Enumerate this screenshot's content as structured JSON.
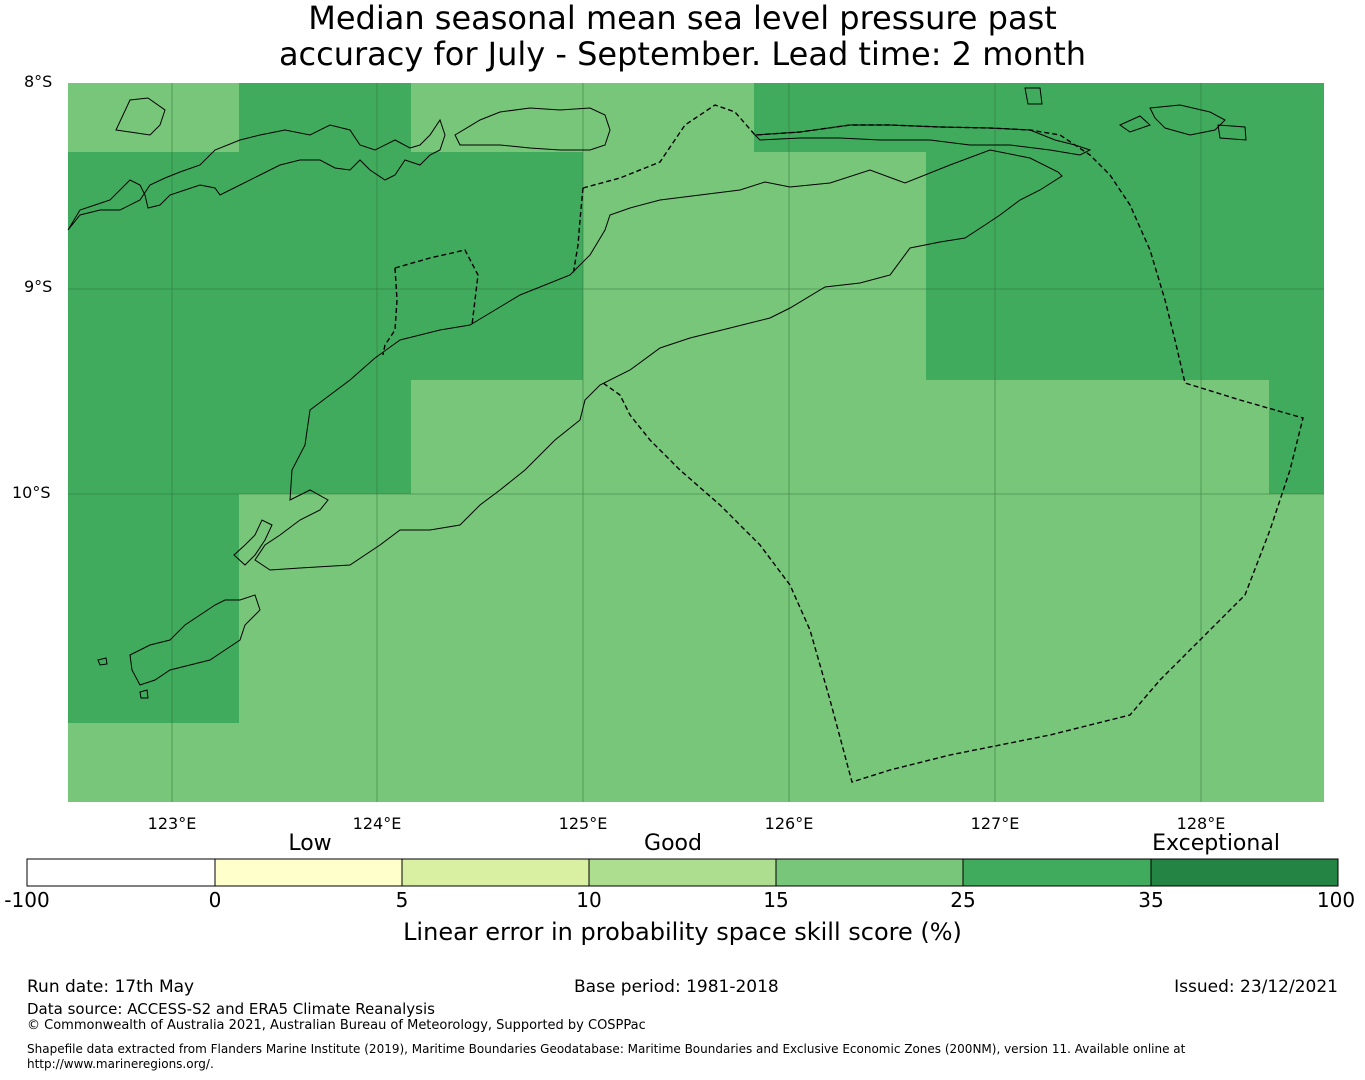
{
  "title": {
    "line1": "Median seasonal mean sea level pressure past",
    "line2": "accuracy for July - September. Lead time: 2 month"
  },
  "map": {
    "lat_labels": [
      "8°S",
      "9°S",
      "10°S"
    ],
    "lon_labels": [
      "123°E",
      "124°E",
      "125°E",
      "126°E",
      "127°E",
      "128°E"
    ],
    "colors": {
      "good": "#78c679",
      "very_good": "#41ab5d",
      "gridline": "#2a6b34",
      "coast": "#000000"
    },
    "icon": "skill-score-grid-map"
  },
  "colorbar": {
    "category_labels": [
      "Low",
      "Good",
      "Exceptional"
    ],
    "ticks": [
      "-100",
      "0",
      "5",
      "10",
      "15",
      "25",
      "35",
      "100"
    ],
    "colors": [
      "#ffffff",
      "#ffffcc",
      "#d9f0a3",
      "#addd8e",
      "#78c679",
      "#41ab5d",
      "#238443"
    ],
    "label": "Linear error in probability space skill score (%)"
  },
  "footer": {
    "run_date": "Run date: 17th May",
    "base_period": "Base period: 1981-2018",
    "issued": "Issued: 23/12/2021",
    "data_source": "Data source: ACCESS-S2 and ERA5 Climate Reanalysis",
    "copyright": "© Commonwealth of Australia 2021, Australian Bureau of Meteorology, Supported by COSPPac",
    "shapefile_line1": "Shapefile data extracted from Flanders Marine Institute (2019), Maritime Boundaries Geodatabase: Maritime Boundaries and Exclusive Economic Zones (200NM), version 11. Available online at",
    "shapefile_line2": "http://www.marineregions.org/."
  }
}
